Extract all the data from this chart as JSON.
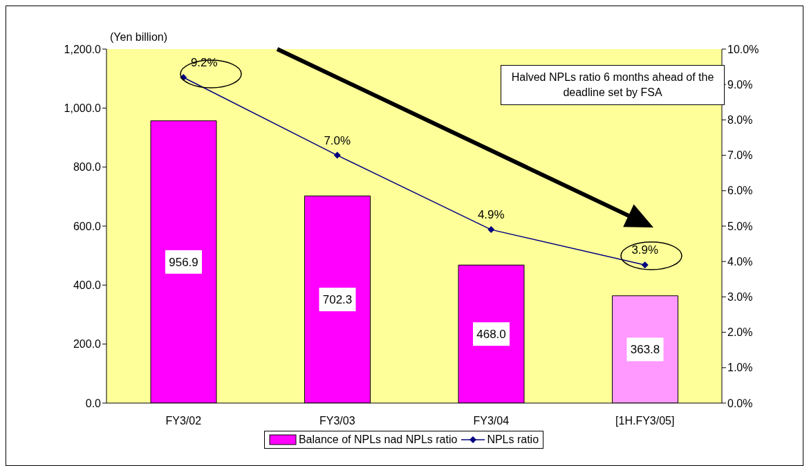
{
  "chart_data": {
    "type": "bar",
    "ylabel": "(Yen billion)",
    "categories": [
      "FY3/02",
      "FY3/03",
      "FY3/04",
      "[1H.FY3/05]"
    ],
    "series": [
      {
        "name": "Balance of NPLs nad NPLs ratio",
        "colors": [
          "#ff00ff",
          "#ff00ff",
          "#ff00ff",
          "#ff99ff"
        ],
        "values": [
          956.9,
          702.3,
          468.0,
          363.8
        ],
        "value_labels": [
          "956.9",
          "702.3",
          "468.0",
          "363.8"
        ]
      },
      {
        "name": "NPLs ratio",
        "type": "line",
        "axis": "y2",
        "color": "#000080",
        "values": [
          9.2,
          7.0,
          4.9,
          3.9
        ],
        "value_labels": [
          "9.2%",
          "7.0%",
          "4.9%",
          "3.9%"
        ]
      }
    ],
    "ylim": [
      0,
      1200
    ],
    "yticks": [
      {
        "value": 0,
        "label": "0.0"
      },
      {
        "value": 200,
        "label": "200.0"
      },
      {
        "value": 400,
        "label": "400.0"
      },
      {
        "value": 600,
        "label": "600.0"
      },
      {
        "value": 800,
        "label": "800.0"
      },
      {
        "value": 1000,
        "label": "1,000.0"
      },
      {
        "value": 1200,
        "label": "1,200.0"
      }
    ],
    "y2lim": [
      0,
      10
    ],
    "y2ticks": [
      {
        "value": 0,
        "label": "0.0%"
      },
      {
        "value": 1,
        "label": "1.0%"
      },
      {
        "value": 2,
        "label": "2.0%"
      },
      {
        "value": 3,
        "label": "3.0%"
      },
      {
        "value": 4,
        "label": "4.0%"
      },
      {
        "value": 5,
        "label": "5.0%"
      },
      {
        "value": 6,
        "label": "6.0%"
      },
      {
        "value": 7,
        "label": "7.0%"
      },
      {
        "value": 8,
        "label": "8.0%"
      },
      {
        "value": 9,
        "label": "9.0%"
      },
      {
        "value": 10,
        "label": "10.0%"
      }
    ],
    "annotations": [
      "Halved NPLs ratio 6 months ahead of the deadline set by FSA"
    ],
    "legend": "bottom",
    "marker": "diamond",
    "line_style": "solid",
    "grid": false
  }
}
